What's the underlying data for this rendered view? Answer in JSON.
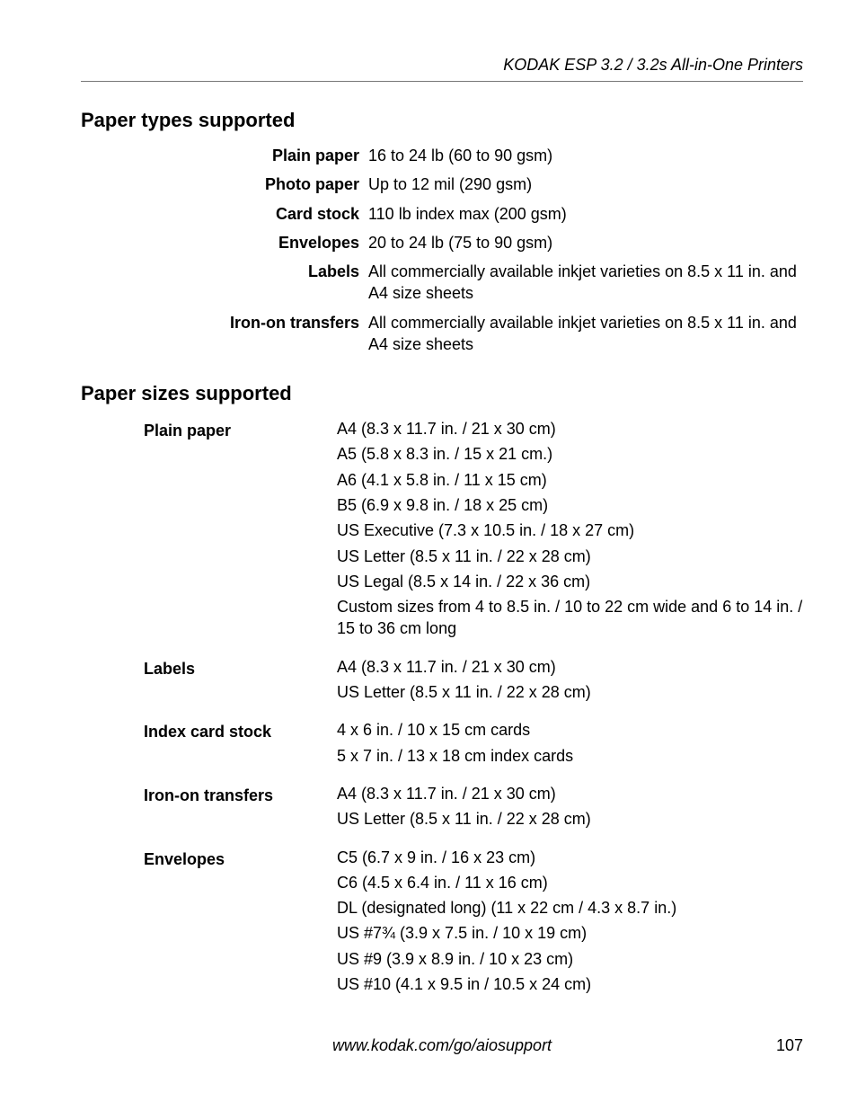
{
  "header": {
    "title": "KODAK ESP 3.2 / 3.2s All-in-One Printers"
  },
  "sections": {
    "paper_types": {
      "heading": "Paper types supported",
      "rows": [
        {
          "label": "Plain paper",
          "value": "16 to 24 lb (60 to 90 gsm)"
        },
        {
          "label": "Photo paper",
          "value": "Up to 12 mil (290 gsm)"
        },
        {
          "label": "Card stock",
          "value": "110 lb index max (200 gsm)"
        },
        {
          "label": "Envelopes",
          "value": "20 to 24 lb (75 to 90 gsm)"
        },
        {
          "label": "Labels",
          "value": "All commercially available inkjet varieties on 8.5 x 11 in. and A4 size sheets"
        },
        {
          "label": "Iron-on transfers",
          "value": "All commercially available inkjet varieties on 8.5 x 11 in. and A4 size sheets"
        }
      ]
    },
    "paper_sizes": {
      "heading": "Paper sizes supported",
      "rows": [
        {
          "label": "Plain paper",
          "lines": [
            "A4 (8.3 x 11.7 in. / 21 x 30 cm)",
            "A5 (5.8 x 8.3 in. / 15 x 21 cm.)",
            "A6 (4.1 x 5.8 in. / 11 x 15 cm)",
            "B5 (6.9 x 9.8 in. / 18 x 25 cm)",
            "US Executive (7.3 x 10.5 in. / 18 x 27 cm)",
            "US Letter (8.5 x 11 in. / 22 x 28 cm)",
            "US Legal (8.5 x 14 in. / 22 x 36 cm)",
            "Custom sizes from 4 to 8.5 in. / 10 to 22 cm wide and 6 to 14 in. / 15 to 36 cm long"
          ]
        },
        {
          "label": "Labels",
          "lines": [
            "A4 (8.3 x 11.7 in. / 21 x 30 cm)",
            "US Letter (8.5 x 11 in. / 22 x 28 cm)"
          ]
        },
        {
          "label": "Index card stock",
          "lines": [
            "4 x 6 in. / 10 x 15 cm cards",
            "5 x 7 in. / 13 x 18 cm index cards"
          ]
        },
        {
          "label": "Iron-on transfers",
          "lines": [
            "A4 (8.3 x 11.7 in. / 21 x 30 cm)",
            "US Letter (8.5 x 11 in. / 22 x 28 cm)"
          ]
        },
        {
          "label": "Envelopes",
          "lines": [
            "C5 (6.7 x 9 in. / 16 x 23 cm)",
            "C6 (4.5 x 6.4 in. / 11 x 16 cm)",
            "DL (designated long) (11 x 22 cm / 4.3 x 8.7 in.)",
            "US #7¾ (3.9 x 7.5 in. / 10 x 19 cm)",
            "US #9 (3.9 x 8.9 in. / 10 x 23 cm)",
            "US #10 (4.1 x 9.5 in / 10.5 x 24 cm)"
          ]
        }
      ]
    }
  },
  "footer": {
    "url": "www.kodak.com/go/aiosupport",
    "page_number": "107"
  },
  "colors": {
    "text": "#000000",
    "rule": "#777777",
    "background": "#ffffff"
  },
  "typography": {
    "body_fontsize_pt": 13,
    "heading_fontsize_pt": 16,
    "heading_weight": "700"
  }
}
